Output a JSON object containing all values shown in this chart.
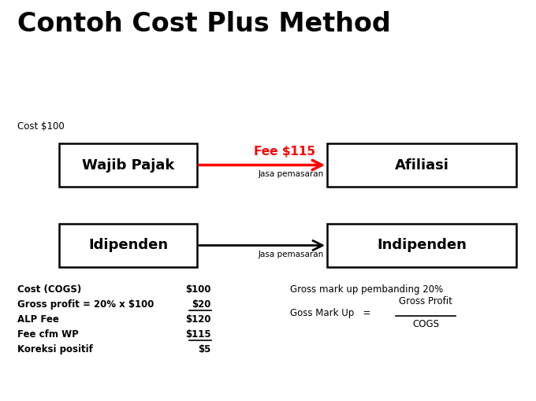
{
  "title": "Contoh Cost Plus Method",
  "title_fontsize": 24,
  "title_fontweight": "bold",
  "background_color": "#ffffff",
  "box1_label": "Wajib Pajak",
  "box2_label": "Afiliasi",
  "box3_label": "Idipenden",
  "box4_label": "Indipenden",
  "arrow1_label_top": "Fee $115",
  "arrow1_label_bottom": "Jasa pemasaran",
  "arrow2_label_bottom": "Jasa pemasaran",
  "cost_label": "Cost $100",
  "table_left": [
    "Cost (COGS)",
    "Gross profit = 20% x $100",
    "ALP Fee",
    "Fee cfm WP",
    "Koreksi positif"
  ],
  "table_right": [
    "$100",
    "$20",
    "$120",
    "$115",
    "$5"
  ],
  "table_underline": [
    false,
    true,
    false,
    true,
    false
  ],
  "right_text1": "Gross mark up pembanding 20%",
  "right_text2": "Goss Mark Up   =",
  "right_text3": "Gross Profit",
  "right_text4": "COGS"
}
